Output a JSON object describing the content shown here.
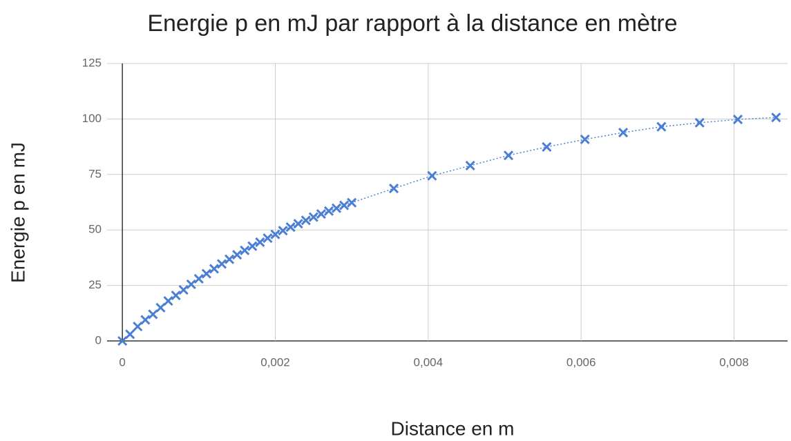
{
  "chart_data": {
    "type": "scatter",
    "title": "Energie p en mJ par rapport à la distance en mètre",
    "x_label": "Distance en m",
    "y_label": "Energie p en mJ",
    "series": [
      {
        "name": "Energie p en mJ",
        "color": "#4a7fd4",
        "x": [
          0,
          0.0001,
          0.0002,
          0.0003,
          0.0004,
          0.0005,
          0.0006,
          0.0007,
          0.0008,
          0.0009,
          0.001,
          0.0011,
          0.0012,
          0.0013,
          0.0014,
          0.0015,
          0.0016,
          0.0017,
          0.0018,
          0.0019,
          0.002,
          0.0021,
          0.0022,
          0.0023,
          0.0024,
          0.0025,
          0.0026,
          0.0027,
          0.0028,
          0.0029,
          0.003,
          0.00355,
          0.00405,
          0.00455,
          0.00505,
          0.00555,
          0.00605,
          0.00655,
          0.00705,
          0.00755,
          0.00805,
          0.00855
        ],
        "values": [
          0,
          3,
          6.5,
          9.5,
          12,
          15,
          18,
          20.5,
          23,
          25.5,
          28,
          30.3,
          32.5,
          34.7,
          36.8,
          38.8,
          40.8,
          42.7,
          44.5,
          46.3,
          48,
          49.7,
          51.3,
          52.8,
          54.3,
          55.8,
          57.2,
          58.5,
          59.8,
          61.1,
          62.3,
          68.7,
          74.4,
          79,
          83.6,
          87.4,
          90.8,
          93.9,
          96.5,
          98.3,
          99.8,
          100.7
        ]
      }
    ],
    "xlim": [
      -0.0002,
      0.0087
    ],
    "xticks": [
      0,
      {
        "value": 0.002,
        "label": "0,002"
      },
      {
        "value": 0.004,
        "label": "0,004"
      },
      {
        "value": 0.006,
        "label": "0,006"
      },
      {
        "value": 0.008,
        "label": "0,008"
      }
    ],
    "ylim": [
      0,
      125
    ],
    "yticks": [
      0,
      25,
      50,
      75,
      100,
      125
    ],
    "grid": true
  }
}
